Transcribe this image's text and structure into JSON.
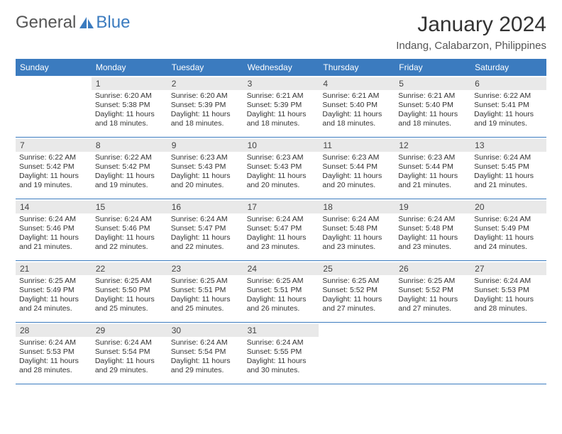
{
  "brand": {
    "part1": "General",
    "part2": "Blue",
    "logo_color": "#3b7bbf"
  },
  "title": "January 2024",
  "subtitle": "Indang, Calabarzon, Philippines",
  "colors": {
    "header_bg": "#3b7bbf",
    "header_text": "#ffffff",
    "date_bar_bg": "#e9e9e9",
    "week_border": "#3b7bbf",
    "body_text": "#333333"
  },
  "day_names": [
    "Sunday",
    "Monday",
    "Tuesday",
    "Wednesday",
    "Thursday",
    "Friday",
    "Saturday"
  ],
  "weeks": [
    [
      {
        "date": "",
        "sunrise": "",
        "sunset": "",
        "daylight": ""
      },
      {
        "date": "1",
        "sunrise": "Sunrise: 6:20 AM",
        "sunset": "Sunset: 5:38 PM",
        "daylight": "Daylight: 11 hours and 18 minutes."
      },
      {
        "date": "2",
        "sunrise": "Sunrise: 6:20 AM",
        "sunset": "Sunset: 5:39 PM",
        "daylight": "Daylight: 11 hours and 18 minutes."
      },
      {
        "date": "3",
        "sunrise": "Sunrise: 6:21 AM",
        "sunset": "Sunset: 5:39 PM",
        "daylight": "Daylight: 11 hours and 18 minutes."
      },
      {
        "date": "4",
        "sunrise": "Sunrise: 6:21 AM",
        "sunset": "Sunset: 5:40 PM",
        "daylight": "Daylight: 11 hours and 18 minutes."
      },
      {
        "date": "5",
        "sunrise": "Sunrise: 6:21 AM",
        "sunset": "Sunset: 5:40 PM",
        "daylight": "Daylight: 11 hours and 18 minutes."
      },
      {
        "date": "6",
        "sunrise": "Sunrise: 6:22 AM",
        "sunset": "Sunset: 5:41 PM",
        "daylight": "Daylight: 11 hours and 19 minutes."
      }
    ],
    [
      {
        "date": "7",
        "sunrise": "Sunrise: 6:22 AM",
        "sunset": "Sunset: 5:42 PM",
        "daylight": "Daylight: 11 hours and 19 minutes."
      },
      {
        "date": "8",
        "sunrise": "Sunrise: 6:22 AM",
        "sunset": "Sunset: 5:42 PM",
        "daylight": "Daylight: 11 hours and 19 minutes."
      },
      {
        "date": "9",
        "sunrise": "Sunrise: 6:23 AM",
        "sunset": "Sunset: 5:43 PM",
        "daylight": "Daylight: 11 hours and 20 minutes."
      },
      {
        "date": "10",
        "sunrise": "Sunrise: 6:23 AM",
        "sunset": "Sunset: 5:43 PM",
        "daylight": "Daylight: 11 hours and 20 minutes."
      },
      {
        "date": "11",
        "sunrise": "Sunrise: 6:23 AM",
        "sunset": "Sunset: 5:44 PM",
        "daylight": "Daylight: 11 hours and 20 minutes."
      },
      {
        "date": "12",
        "sunrise": "Sunrise: 6:23 AM",
        "sunset": "Sunset: 5:44 PM",
        "daylight": "Daylight: 11 hours and 21 minutes."
      },
      {
        "date": "13",
        "sunrise": "Sunrise: 6:24 AM",
        "sunset": "Sunset: 5:45 PM",
        "daylight": "Daylight: 11 hours and 21 minutes."
      }
    ],
    [
      {
        "date": "14",
        "sunrise": "Sunrise: 6:24 AM",
        "sunset": "Sunset: 5:46 PM",
        "daylight": "Daylight: 11 hours and 21 minutes."
      },
      {
        "date": "15",
        "sunrise": "Sunrise: 6:24 AM",
        "sunset": "Sunset: 5:46 PM",
        "daylight": "Daylight: 11 hours and 22 minutes."
      },
      {
        "date": "16",
        "sunrise": "Sunrise: 6:24 AM",
        "sunset": "Sunset: 5:47 PM",
        "daylight": "Daylight: 11 hours and 22 minutes."
      },
      {
        "date": "17",
        "sunrise": "Sunrise: 6:24 AM",
        "sunset": "Sunset: 5:47 PM",
        "daylight": "Daylight: 11 hours and 23 minutes."
      },
      {
        "date": "18",
        "sunrise": "Sunrise: 6:24 AM",
        "sunset": "Sunset: 5:48 PM",
        "daylight": "Daylight: 11 hours and 23 minutes."
      },
      {
        "date": "19",
        "sunrise": "Sunrise: 6:24 AM",
        "sunset": "Sunset: 5:48 PM",
        "daylight": "Daylight: 11 hours and 23 minutes."
      },
      {
        "date": "20",
        "sunrise": "Sunrise: 6:24 AM",
        "sunset": "Sunset: 5:49 PM",
        "daylight": "Daylight: 11 hours and 24 minutes."
      }
    ],
    [
      {
        "date": "21",
        "sunrise": "Sunrise: 6:25 AM",
        "sunset": "Sunset: 5:49 PM",
        "daylight": "Daylight: 11 hours and 24 minutes."
      },
      {
        "date": "22",
        "sunrise": "Sunrise: 6:25 AM",
        "sunset": "Sunset: 5:50 PM",
        "daylight": "Daylight: 11 hours and 25 minutes."
      },
      {
        "date": "23",
        "sunrise": "Sunrise: 6:25 AM",
        "sunset": "Sunset: 5:51 PM",
        "daylight": "Daylight: 11 hours and 25 minutes."
      },
      {
        "date": "24",
        "sunrise": "Sunrise: 6:25 AM",
        "sunset": "Sunset: 5:51 PM",
        "daylight": "Daylight: 11 hours and 26 minutes."
      },
      {
        "date": "25",
        "sunrise": "Sunrise: 6:25 AM",
        "sunset": "Sunset: 5:52 PM",
        "daylight": "Daylight: 11 hours and 27 minutes."
      },
      {
        "date": "26",
        "sunrise": "Sunrise: 6:25 AM",
        "sunset": "Sunset: 5:52 PM",
        "daylight": "Daylight: 11 hours and 27 minutes."
      },
      {
        "date": "27",
        "sunrise": "Sunrise: 6:24 AM",
        "sunset": "Sunset: 5:53 PM",
        "daylight": "Daylight: 11 hours and 28 minutes."
      }
    ],
    [
      {
        "date": "28",
        "sunrise": "Sunrise: 6:24 AM",
        "sunset": "Sunset: 5:53 PM",
        "daylight": "Daylight: 11 hours and 28 minutes."
      },
      {
        "date": "29",
        "sunrise": "Sunrise: 6:24 AM",
        "sunset": "Sunset: 5:54 PM",
        "daylight": "Daylight: 11 hours and 29 minutes."
      },
      {
        "date": "30",
        "sunrise": "Sunrise: 6:24 AM",
        "sunset": "Sunset: 5:54 PM",
        "daylight": "Daylight: 11 hours and 29 minutes."
      },
      {
        "date": "31",
        "sunrise": "Sunrise: 6:24 AM",
        "sunset": "Sunset: 5:55 PM",
        "daylight": "Daylight: 11 hours and 30 minutes."
      },
      {
        "date": "",
        "sunrise": "",
        "sunset": "",
        "daylight": ""
      },
      {
        "date": "",
        "sunrise": "",
        "sunset": "",
        "daylight": ""
      },
      {
        "date": "",
        "sunrise": "",
        "sunset": "",
        "daylight": ""
      }
    ]
  ]
}
